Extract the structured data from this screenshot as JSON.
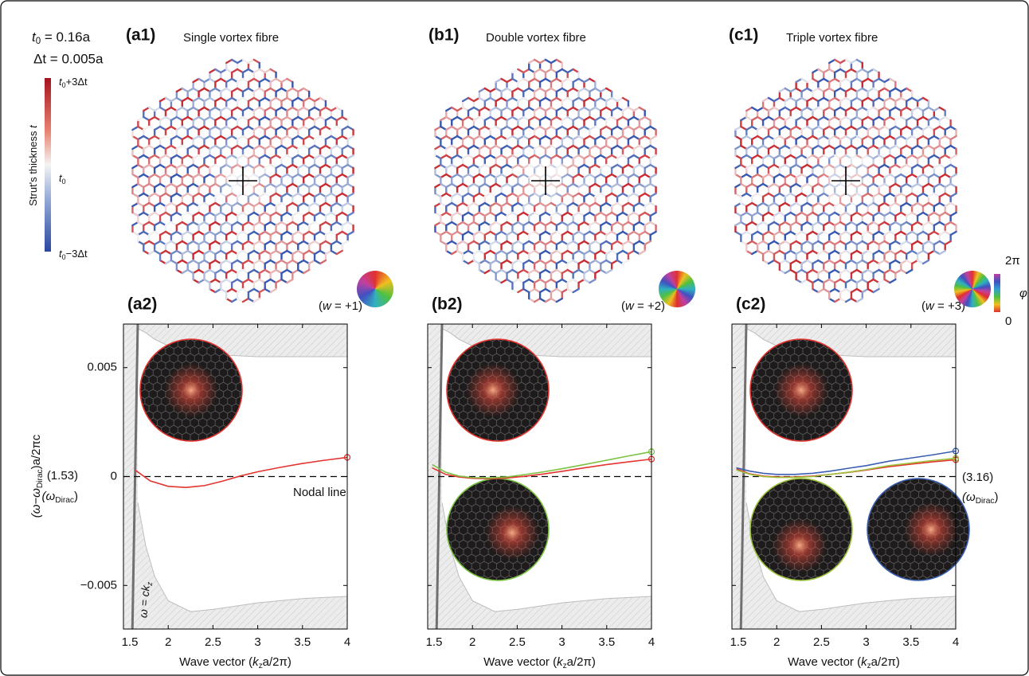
{
  "params": {
    "t0": [
      "t",
      "0",
      " = 0.16a"
    ],
    "dt": "Δt = 0.005a"
  },
  "thickness_bar": {
    "label": [
      "Strut's thickness ",
      "t"
    ],
    "top": [
      "t",
      "0",
      "+3Δt"
    ],
    "mid": [
      "t",
      "0"
    ],
    "bottom": [
      "t",
      "0",
      "−3Δt"
    ]
  },
  "phase_bar": {
    "top": "2π",
    "bottom": "0",
    "label": "φ"
  },
  "lattices": [
    {
      "label": "(a1)",
      "title": "Single vortex fibre",
      "winding": [
        "(",
        "w",
        " = +1)"
      ]
    },
    {
      "label": "(b1)",
      "title": "Double vortex fibre",
      "winding": [
        "(",
        "w",
        " = +2)"
      ]
    },
    {
      "label": "(c1)",
      "title": "Triple vortex fibre",
      "winding": [
        "(",
        "w",
        " = +3)"
      ]
    }
  ],
  "chart_data": [
    {
      "type": "line",
      "panel": "(a2)",
      "xlabel": [
        "Wave vector (",
        "k",
        "z",
        "a/2π)"
      ],
      "ylabel": [
        "(ω−ω",
        "Dirac",
        ")a/2πc"
      ],
      "xlim": [
        1.5,
        4
      ],
      "ylim": [
        -0.007,
        0.007
      ],
      "xticks": [
        1.5,
        2,
        2.5,
        3,
        3.5,
        4
      ],
      "yticks": [
        0.005,
        0,
        {
          "value": -0.005,
          "label": "−0.005"
        }
      ],
      "x": [
        1.63,
        1.8,
        2.0,
        2.2,
        2.4,
        2.6,
        2.8,
        3.0,
        3.25,
        3.5,
        3.75,
        4.0
      ],
      "series": [
        {
          "color": "#e3342f",
          "values": [
            0.0003,
            -0.0002,
            -0.00045,
            -0.0005,
            -0.00042,
            -0.00022,
            2e-05,
            0.00022,
            0.00042,
            0.0006,
            0.00075,
            0.00088
          ]
        }
      ],
      "gap": {
        "x": [
          1.66,
          1.75,
          1.85,
          2.0,
          2.25,
          2.5,
          3.0,
          3.5,
          4.0
        ],
        "upper": [
          0.0068,
          0.0066,
          0.0063,
          0.006,
          0.0057,
          0.0056,
          0.0055,
          0.0055,
          0.0055
        ],
        "lower": [
          -0.0012,
          -0.0032,
          -0.0046,
          -0.0057,
          -0.0062,
          -0.0061,
          -0.0058,
          -0.0056,
          -0.0055
        ]
      },
      "light_line": {
        "x": [
          1.6,
          1.66
        ],
        "y": [
          -0.007,
          0.007
        ],
        "label": [
          "ω = c",
          "k",
          "z"
        ]
      },
      "annotations": [
        [
          "(1.53)"
        ],
        [
          "(ω",
          "Dirac",
          ")"
        ],
        [
          "Nodal line"
        ]
      ]
    },
    {
      "type": "line",
      "panel": "(b2)",
      "xlabel": [
        "Wave vector (",
        "k",
        "z",
        "a/2π)"
      ],
      "xlim": [
        1.5,
        4
      ],
      "ylim": [
        -0.007,
        0.007
      ],
      "xticks": [
        1.5,
        2,
        2.5,
        3,
        3.5,
        4
      ],
      "yticks": [
        0.005,
        0,
        -0.005
      ],
      "x": [
        1.55,
        1.7,
        1.85,
        2.0,
        2.2,
        2.4,
        2.6,
        2.8,
        3.0,
        3.25,
        3.5,
        3.75,
        4.0
      ],
      "series": [
        {
          "color": "#e3342f",
          "values": [
            0.0004,
            0.0001,
            -2e-05,
            -8e-05,
            -0.0001,
            -6e-05,
            2e-05,
            0.00012,
            0.00024,
            0.0004,
            0.00055,
            0.00068,
            0.0008
          ]
        },
        {
          "color": "#7cc242",
          "values": [
            0.00055,
            0.0002,
            2e-05,
            -5e-05,
            -6e-05,
            -1e-05,
            0.0001,
            0.00022,
            0.00036,
            0.00055,
            0.00075,
            0.00095,
            0.00114
          ]
        }
      ],
      "gap": {
        "x": [
          1.66,
          1.75,
          1.85,
          2.0,
          2.25,
          2.5,
          3.0,
          3.5,
          4.0
        ],
        "upper": [
          0.0068,
          0.0066,
          0.0063,
          0.006,
          0.0057,
          0.0056,
          0.0055,
          0.0055,
          0.0055
        ],
        "lower": [
          -0.0012,
          -0.0032,
          -0.0046,
          -0.0057,
          -0.0062,
          -0.0061,
          -0.0058,
          -0.0056,
          -0.0055
        ]
      },
      "light_line": {
        "x": [
          1.6,
          1.66
        ],
        "y": [
          -0.007,
          0.007
        ]
      }
    },
    {
      "type": "line",
      "panel": "(c2)",
      "xlabel": [
        "Wave vector (",
        "k",
        "z",
        "a/2π)"
      ],
      "xlim": [
        1.5,
        4
      ],
      "ylim": [
        -0.007,
        0.007
      ],
      "xticks": [
        1.5,
        2,
        2.5,
        3,
        3.5,
        4
      ],
      "yticks": [
        0.005,
        0,
        -0.005
      ],
      "x": [
        1.55,
        1.7,
        1.85,
        2.0,
        2.2,
        2.4,
        2.6,
        2.8,
        3.0,
        3.25,
        3.5,
        3.75,
        4.0
      ],
      "series": [
        {
          "color": "#e3342f",
          "values": [
            0.00035,
            0.00012,
            2e-05,
            -2e-05,
            -2e-05,
            2e-05,
            0.0001,
            0.00019,
            0.0003,
            0.00045,
            0.00057,
            0.00068,
            0.00077
          ]
        },
        {
          "color": "#9cc23a",
          "values": [
            0.0003,
            0.0001,
            0.0,
            -4e-05,
            -4e-05,
            0.0,
            0.0001,
            0.0002,
            0.00032,
            0.0005,
            0.00062,
            0.00074,
            0.00084
          ]
        },
        {
          "color": "#3a5fb0",
          "values": [
            0.0004,
            0.00025,
            0.00015,
            0.0001,
            0.0001,
            0.00015,
            0.00025,
            0.00038,
            0.0005,
            0.0007,
            0.00085,
            0.001,
            0.00117
          ]
        }
      ],
      "gap": {
        "x": [
          1.66,
          1.75,
          1.85,
          2.0,
          2.25,
          2.5,
          3.0,
          3.5,
          4.0
        ],
        "upper": [
          0.0068,
          0.0066,
          0.0063,
          0.006,
          0.0057,
          0.0056,
          0.0055,
          0.0055,
          0.0055
        ],
        "lower": [
          -0.0012,
          -0.0032,
          -0.0046,
          -0.0057,
          -0.0062,
          -0.0061,
          -0.0058,
          -0.0056,
          -0.0055
        ]
      },
      "light_line": {
        "x": [
          1.6,
          1.66
        ],
        "y": [
          -0.007,
          0.007
        ]
      },
      "annotations": [
        [
          "(3.16)"
        ],
        [
          "(ω",
          "Dirac",
          ")"
        ]
      ]
    }
  ]
}
